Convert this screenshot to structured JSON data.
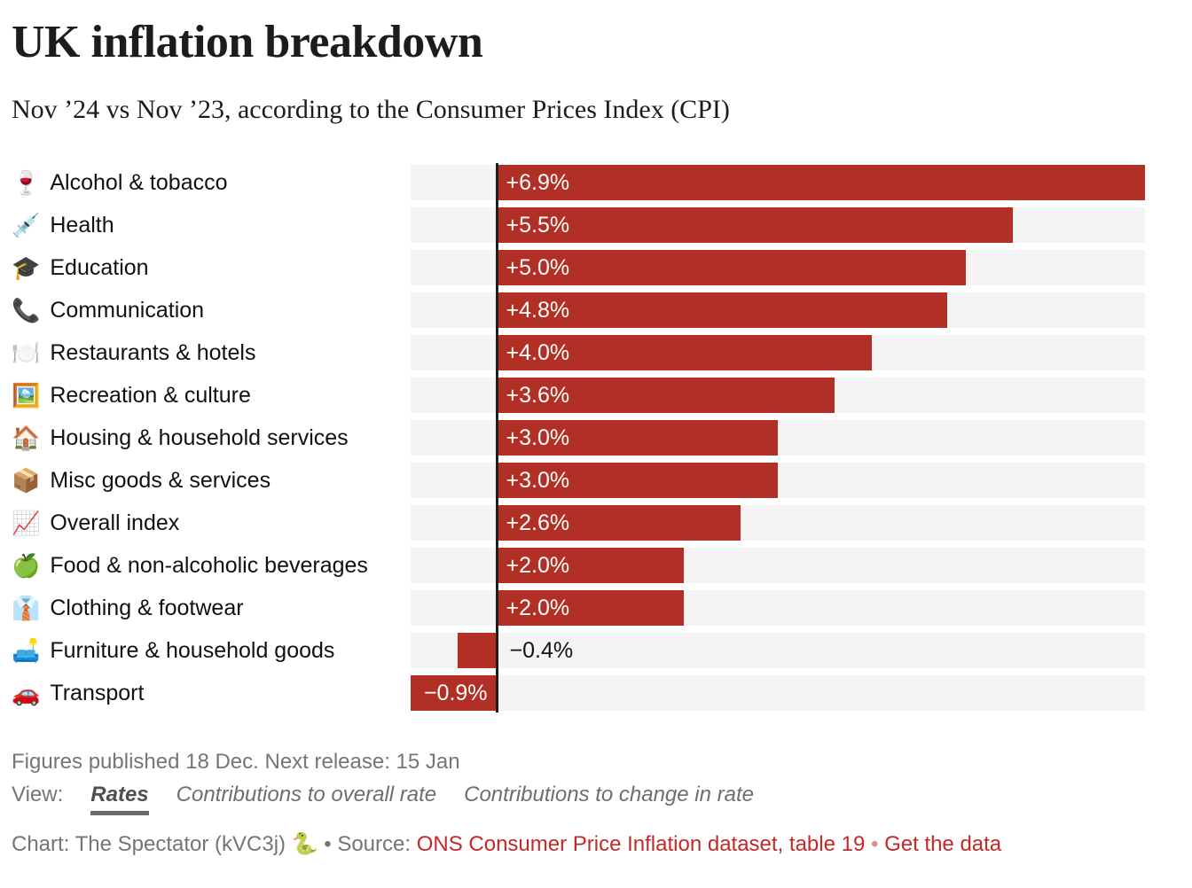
{
  "header": {
    "title": "UK inflation breakdown",
    "subtitle": "Nov ’24 vs Nov ’23, according to the Consumer Prices Index (CPI)"
  },
  "chart_data": {
    "type": "bar",
    "orientation": "horizontal",
    "title": "UK inflation breakdown",
    "subtitle": "Nov ’24 vs Nov ’23, according to the Consumer Prices Index (CPI)",
    "unit": "%",
    "xlim": [
      -0.9,
      6.9
    ],
    "grid": false,
    "categories": [
      "Alcohol & tobacco",
      "Health",
      "Education",
      "Communication",
      "Restaurants & hotels",
      "Recreation & culture",
      "Housing & household services",
      "Misc goods & services",
      "Overall index",
      "Food & non-alcoholic beverages",
      "Clothing & footwear",
      "Furniture & household goods",
      "Transport"
    ],
    "icons": [
      "🍷",
      "💉",
      "🎓",
      "📞",
      "🍽️",
      "🖼️",
      "🏠",
      "📦",
      "📈",
      "🍏",
      "👔",
      "🛋️",
      "🚗"
    ],
    "values": [
      6.9,
      5.5,
      5.0,
      4.8,
      4.0,
      3.6,
      3.0,
      3.0,
      2.6,
      2.0,
      2.0,
      -0.4,
      -0.9
    ],
    "value_labels": [
      "+6.9%",
      "+5.5%",
      "+5.0%",
      "+4.8%",
      "+4.0%",
      "+3.6%",
      "+3.0%",
      "+3.0%",
      "+2.6%",
      "+2.0%",
      "+2.0%",
      "−0.4%",
      "−0.9%"
    ],
    "bar_color": "#b22f25",
    "track_color": "#f4f4f4"
  },
  "footer": {
    "release_note": "Figures published 18 Dec. Next release: 15 Jan",
    "view_label": "View:",
    "view_options": [
      {
        "label": "Rates",
        "active": true
      },
      {
        "label": "Contributions to overall rate",
        "active": false
      },
      {
        "label": "Contributions to change in rate",
        "active": false
      }
    ],
    "credit": {
      "chart_prefix": "Chart: The Spectator (kVC3j)",
      "snake_icon": "🐍",
      "separator": "•",
      "source_label": "Source:",
      "source_link": "ONS Consumer Price Inflation dataset, table 19",
      "separator2": "•",
      "get_data_link": "Get the data"
    }
  }
}
